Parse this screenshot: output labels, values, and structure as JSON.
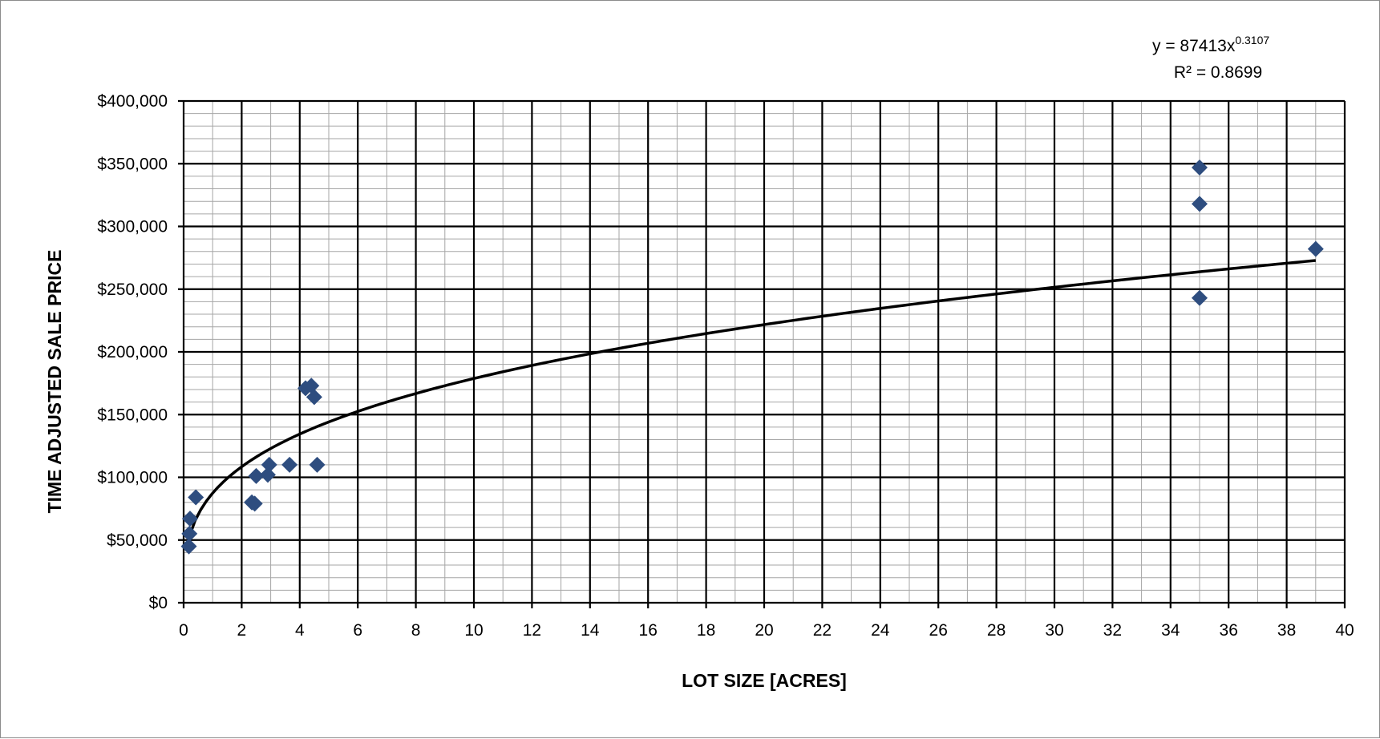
{
  "chart_data": {
    "type": "scatter",
    "xlabel": "LOT SIZE [ACRES]",
    "ylabel": "TIME ADJUSTED SALE PRICE",
    "xlim": [
      0,
      40
    ],
    "ylim": [
      0,
      400000
    ],
    "x_ticks": [
      "0",
      "2",
      "4",
      "6",
      "8",
      "10",
      "12",
      "14",
      "16",
      "18",
      "20",
      "22",
      "24",
      "26",
      "28",
      "30",
      "32",
      "34",
      "36",
      "38",
      "40"
    ],
    "y_ticks": [
      "$0",
      "$50,000",
      "$100,000",
      "$150,000",
      "$200,000",
      "$250,000",
      "$300,000",
      "$350,000",
      "$400,000"
    ],
    "grid": true,
    "marker_color": "#2e4d7f",
    "trendline_color": "#000000",
    "points": [
      {
        "x": 0.18,
        "y": 45000
      },
      {
        "x": 0.2,
        "y": 55000
      },
      {
        "x": 0.22,
        "y": 67000
      },
      {
        "x": 0.42,
        "y": 84000
      },
      {
        "x": 2.35,
        "y": 80000
      },
      {
        "x": 2.45,
        "y": 79000
      },
      {
        "x": 2.5,
        "y": 101000
      },
      {
        "x": 2.9,
        "y": 102000
      },
      {
        "x": 2.95,
        "y": 110000
      },
      {
        "x": 3.65,
        "y": 110000
      },
      {
        "x": 4.2,
        "y": 171000
      },
      {
        "x": 4.4,
        "y": 173000
      },
      {
        "x": 4.5,
        "y": 164000
      },
      {
        "x": 4.6,
        "y": 110000
      },
      {
        "x": 35.0,
        "y": 347000
      },
      {
        "x": 35.0,
        "y": 318000
      },
      {
        "x": 35.0,
        "y": 243000
      },
      {
        "x": 39.0,
        "y": 282000
      }
    ],
    "trendline": {
      "type": "power",
      "a": 87413,
      "b": 0.3107,
      "x_range": [
        0.2,
        39
      ],
      "equation_base": "y = 87413x",
      "equation_exp": "0.3107",
      "r2_label": "R² = 0.8699"
    }
  }
}
